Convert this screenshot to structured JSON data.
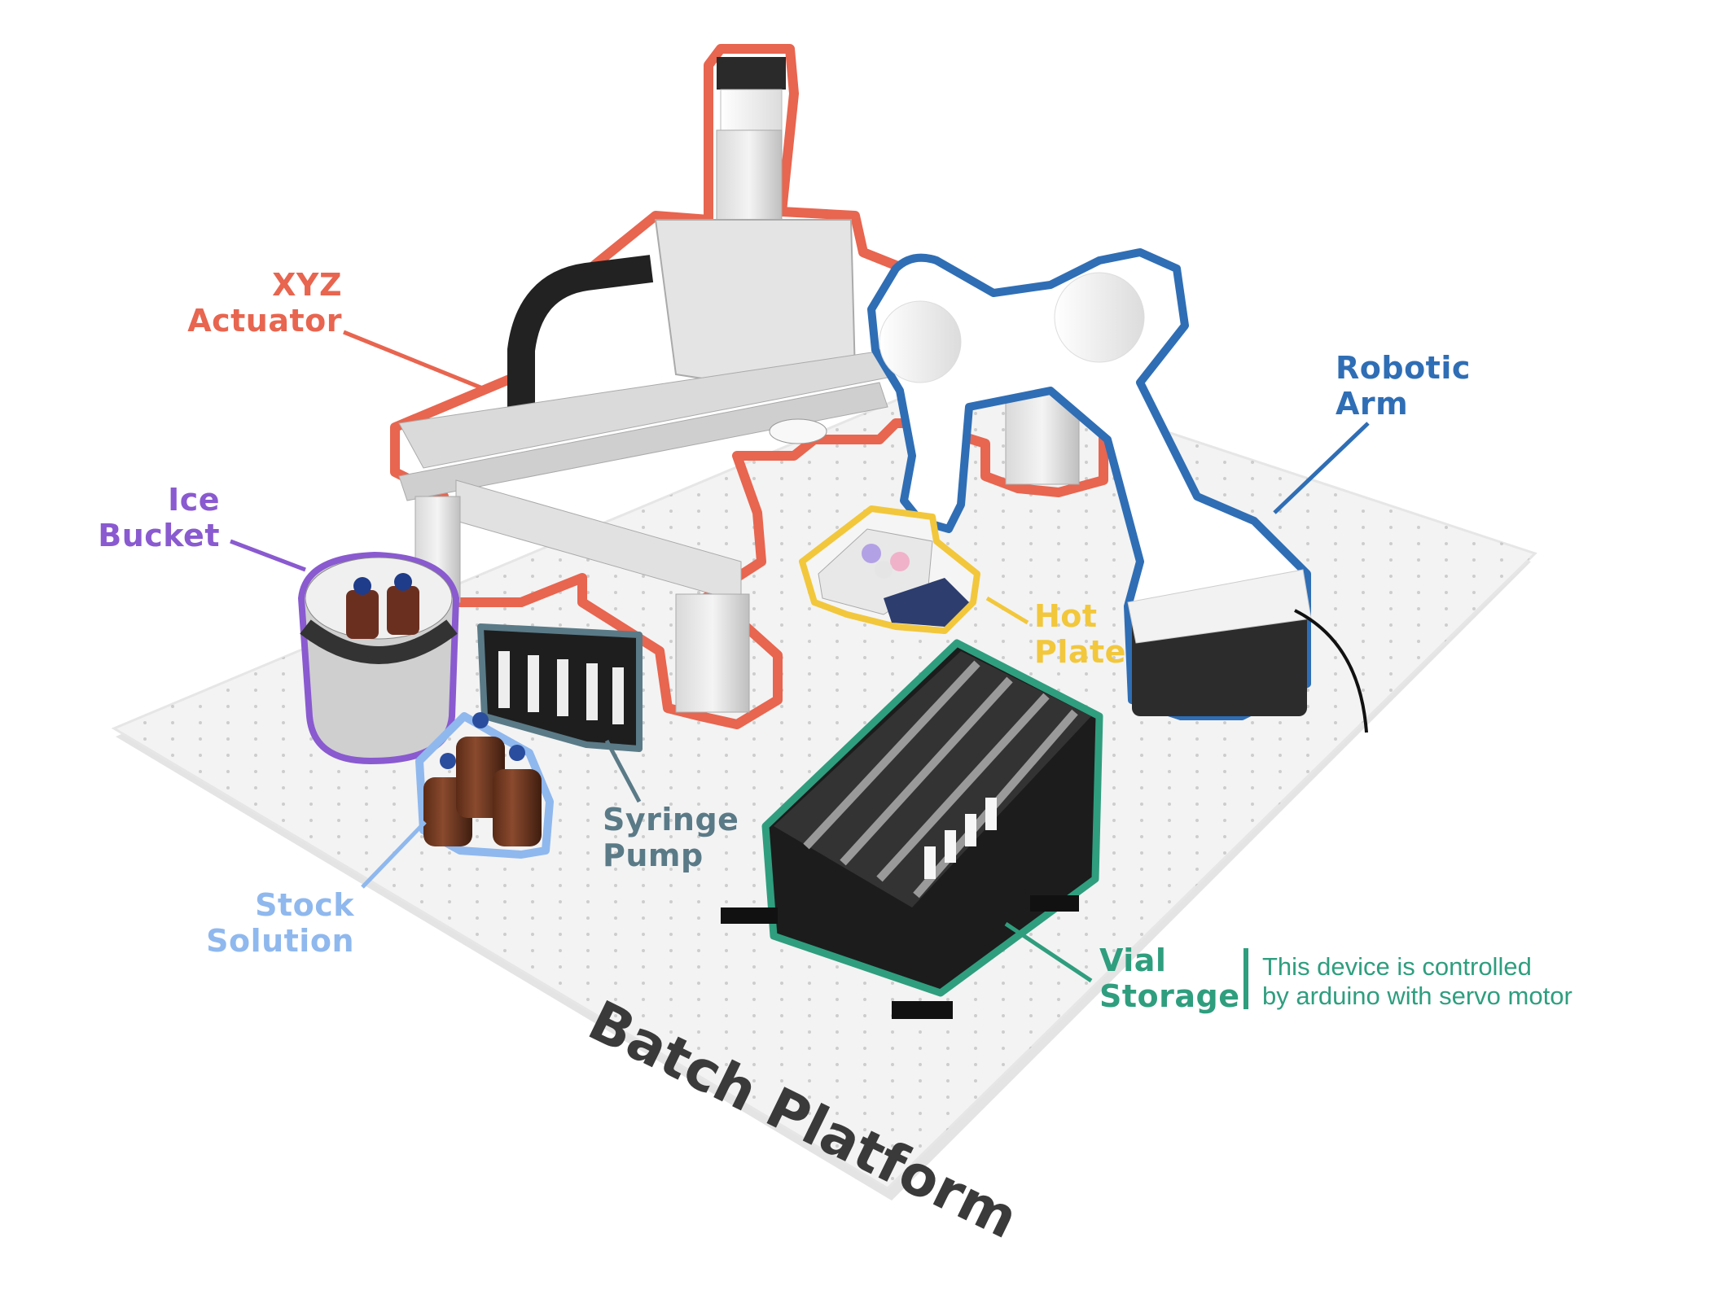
{
  "colors": {
    "xyz": "#e8654f",
    "robot": "#2f6eb5",
    "ice": "#8a5ad0",
    "hot": "#f2c73b",
    "syringe": "#5a7a87",
    "stock": "#8fb8ee",
    "vial": "#2f9e7e",
    "platform": "#f2f2f2",
    "platform_text": "#3a3a3a"
  },
  "labels": {
    "xyz": {
      "line1": "XYZ",
      "line2": "Actuator"
    },
    "robot": {
      "line1": "Robotic",
      "line2": "Arm"
    },
    "ice": {
      "line1": "Ice",
      "line2": "Bucket"
    },
    "hot": {
      "line1": "Hot",
      "line2": "Plate"
    },
    "syringe": {
      "line1": "Syringe",
      "line2": "Pump"
    },
    "stock": {
      "line1": "Stock",
      "line2": "Solution"
    },
    "vial": {
      "line1": "Vial",
      "line2": "Storage"
    }
  },
  "note": {
    "line1": "This device is controlled",
    "line2": "by arduino with servo motor"
  },
  "platform": {
    "title": "Batch Platform"
  }
}
